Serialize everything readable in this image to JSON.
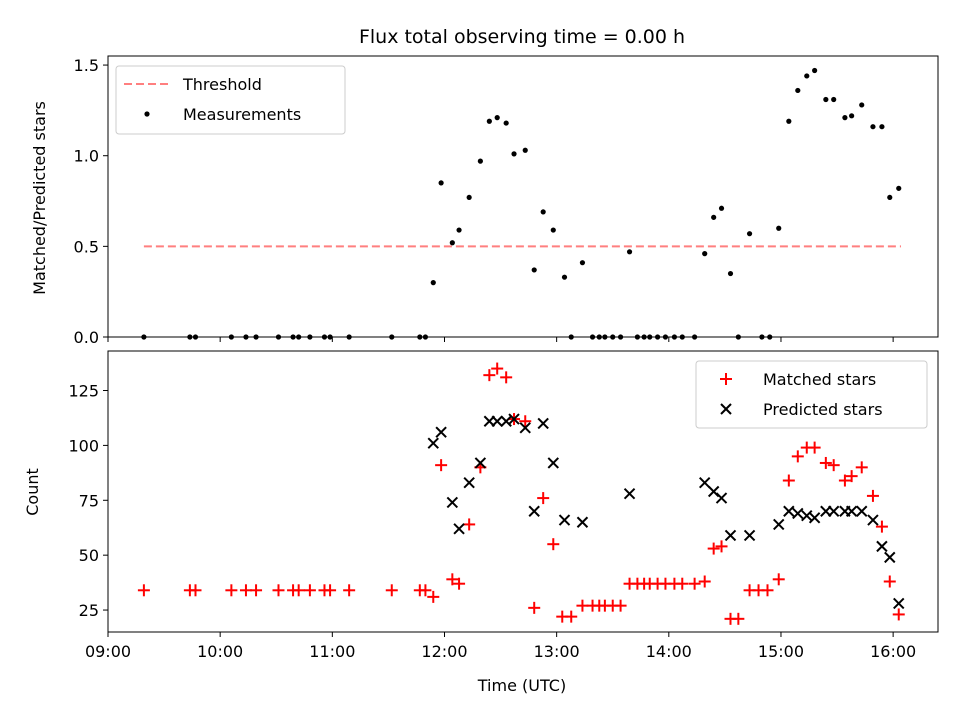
{
  "chart_data": [
    {
      "type": "scatter",
      "title": "Flux total observing time = 0.00 h",
      "ylabel": "Matched/Predicted stars",
      "xlim": [
        9.0,
        16.4
      ],
      "ylim": [
        0,
        1.55
      ],
      "yticks": [
        "0.0",
        "0.5",
        "1.0",
        "1.5"
      ],
      "legend": {
        "position": "top-left"
      },
      "threshold": {
        "name": "Threshold",
        "y": 0.5,
        "x_range": [
          9.32,
          16.07
        ],
        "color": "#ff7f7f"
      },
      "series": [
        {
          "name": "Measurements",
          "color": "#000000",
          "x": [
            9.32,
            9.73,
            9.78,
            10.1,
            10.23,
            10.32,
            10.52,
            10.65,
            10.7,
            10.8,
            10.93,
            10.98,
            11.15,
            11.53,
            11.78,
            11.83,
            11.9,
            11.97,
            12.07,
            12.13,
            12.22,
            12.32,
            12.4,
            12.47,
            12.55,
            12.62,
            12.72,
            12.8,
            12.88,
            12.97,
            13.07,
            13.13,
            13.23,
            13.32,
            13.38,
            13.43,
            13.5,
            13.57,
            13.65,
            13.72,
            13.78,
            13.83,
            13.9,
            13.97,
            14.05,
            14.12,
            14.23,
            14.32,
            14.4,
            14.47,
            14.55,
            14.62,
            14.72,
            14.83,
            14.9,
            14.98,
            15.07,
            15.15,
            15.23,
            15.3,
            15.4,
            15.47,
            15.57,
            15.63,
            15.72,
            15.82,
            15.9,
            15.97,
            16.05
          ],
          "y": [
            0,
            0,
            0,
            0,
            0,
            0,
            0,
            0,
            0,
            0,
            0,
            0,
            0,
            0,
            0,
            0,
            0.3,
            0.85,
            0.52,
            0.59,
            0.77,
            0.97,
            1.19,
            1.21,
            1.18,
            1.01,
            1.03,
            0.37,
            0.69,
            0.59,
            0.33,
            0,
            0.41,
            0,
            0,
            0,
            0,
            0,
            0.47,
            0,
            0,
            0,
            0,
            0,
            0,
            0,
            0,
            0.46,
            0.66,
            0.71,
            0.35,
            0,
            0.57,
            0,
            0,
            0.6,
            1.19,
            1.36,
            1.44,
            1.47,
            1.31,
            1.31,
            1.21,
            1.22,
            1.28,
            1.16,
            1.16,
            0.77,
            0.82
          ]
        }
      ]
    },
    {
      "type": "scatter",
      "xlabel": "Time (UTC)",
      "ylabel": "Count",
      "xlim": [
        9.0,
        16.4
      ],
      "ylim": [
        15,
        143
      ],
      "yticks": [
        "25",
        "50",
        "75",
        "100",
        "125"
      ],
      "xticks": [
        "09:00",
        "10:00",
        "11:00",
        "12:00",
        "13:00",
        "14:00",
        "15:00",
        "16:00"
      ],
      "legend": {
        "position": "top-right"
      },
      "series": [
        {
          "name": "Matched stars",
          "marker": "plus",
          "color": "#ff0000",
          "x": [
            9.32,
            9.73,
            9.78,
            10.1,
            10.23,
            10.32,
            10.52,
            10.65,
            10.7,
            10.8,
            10.93,
            10.98,
            11.15,
            11.53,
            11.78,
            11.83,
            11.9,
            11.97,
            12.07,
            12.13,
            12.22,
            12.32,
            12.4,
            12.47,
            12.55,
            12.62,
            12.72,
            12.8,
            12.88,
            12.97,
            13.05,
            13.13,
            13.23,
            13.32,
            13.38,
            13.43,
            13.5,
            13.57,
            13.65,
            13.72,
            13.78,
            13.83,
            13.9,
            13.97,
            14.05,
            14.12,
            14.23,
            14.32,
            14.4,
            14.47,
            14.55,
            14.62,
            14.72,
            14.8,
            14.88,
            14.98,
            15.07,
            15.15,
            15.23,
            15.3,
            15.4,
            15.47,
            15.57,
            15.63,
            15.72,
            15.82,
            15.9,
            15.97,
            16.05
          ],
          "y": [
            34,
            34,
            34,
            34,
            34,
            34,
            34,
            34,
            34,
            34,
            34,
            34,
            34,
            34,
            34,
            34,
            31,
            91,
            39,
            37,
            64,
            90,
            132,
            135,
            131,
            112,
            111,
            26,
            76,
            55,
            22,
            22,
            27,
            27,
            27,
            27,
            27,
            27,
            37,
            37,
            37,
            37,
            37,
            37,
            37,
            37,
            37,
            38,
            53,
            54,
            21,
            21,
            34,
            34,
            34,
            39,
            84,
            95,
            99,
            99,
            92,
            91,
            84,
            86,
            90,
            77,
            63,
            38,
            23
          ]
        },
        {
          "name": "Predicted stars",
          "marker": "x",
          "color": "#000000",
          "x": [
            11.9,
            11.97,
            12.07,
            12.13,
            12.22,
            12.32,
            12.4,
            12.47,
            12.55,
            12.62,
            12.72,
            12.8,
            12.88,
            12.97,
            13.07,
            13.23,
            13.65,
            14.32,
            14.4,
            14.47,
            14.55,
            14.72,
            14.98,
            15.07,
            15.15,
            15.23,
            15.3,
            15.4,
            15.47,
            15.57,
            15.63,
            15.72,
            15.82,
            15.9,
            15.97,
            16.05
          ],
          "y": [
            101,
            106,
            74,
            62,
            83,
            92,
            111,
            111,
            111,
            112,
            108,
            70,
            110,
            92,
            66,
            65,
            78,
            83,
            79,
            76,
            59,
            59,
            64,
            70,
            69,
            68,
            67,
            70,
            70,
            70,
            70,
            70,
            66,
            54,
            49,
            28
          ]
        }
      ]
    }
  ]
}
